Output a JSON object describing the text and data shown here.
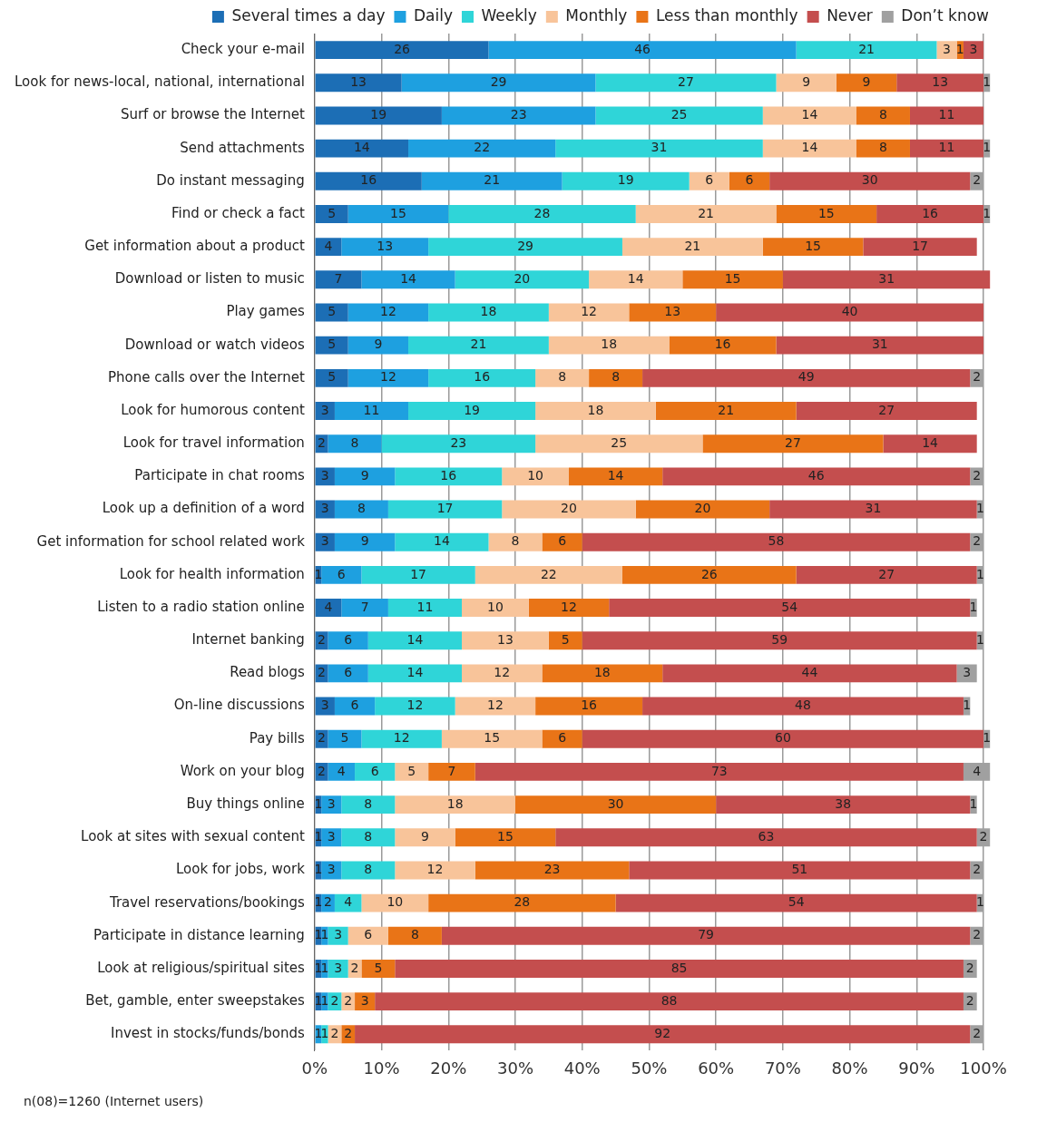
{
  "chart_data": {
    "type": "bar",
    "orientation": "horizontal",
    "stacked": true,
    "data_labels": true,
    "grid": "x",
    "legend": "top",
    "categories": [
      "Check your e-mail",
      "Look for news-local, national, international",
      "Surf or browse the Internet",
      "Send attachments",
      "Do instant messaging",
      "Find or check a fact",
      "Get information about a product",
      "Download or listen to music",
      "Play games",
      "Download or watch videos",
      "Phone calls over the Internet",
      "Look for humorous content",
      "Look for travel information",
      "Participate in chat rooms",
      "Look up a definition of a word",
      "Get information for school related work",
      "Look for health information",
      "Listen to a radio station online",
      "Internet banking",
      "Read blogs",
      "On-line discussions",
      "Pay bills",
      "Work on your blog",
      "Buy things online",
      "Look at sites with sexual content",
      "Look for jobs, work",
      "Travel reservations/bookings",
      "Participate in distance learning",
      "Look at religious/spiritual sites",
      "Bet, gamble, enter sweepstakes",
      "Invest in stocks/funds/bonds"
    ],
    "series": [
      {
        "name": "Several times a day",
        "color": "#1c6eb5",
        "values": [
          26,
          13,
          19,
          14,
          16,
          5,
          4,
          7,
          5,
          5,
          5,
          3,
          2,
          3,
          3,
          3,
          1,
          4,
          2,
          2,
          3,
          2,
          2,
          1,
          1,
          1,
          1,
          1,
          1,
          1,
          null
        ]
      },
      {
        "name": "Daily",
        "color": "#1ea0e0",
        "values": [
          46,
          29,
          23,
          22,
          21,
          15,
          13,
          14,
          12,
          9,
          12,
          11,
          8,
          9,
          8,
          9,
          6,
          7,
          6,
          6,
          6,
          5,
          4,
          3,
          3,
          3,
          2,
          1,
          1,
          1,
          1
        ]
      },
      {
        "name": "Weekly",
        "color": "#2fd5d8",
        "values": [
          21,
          27,
          25,
          31,
          19,
          28,
          29,
          20,
          18,
          21,
          16,
          19,
          23,
          16,
          17,
          14,
          17,
          11,
          14,
          14,
          12,
          12,
          6,
          8,
          8,
          8,
          4,
          3,
          3,
          2,
          1
        ]
      },
      {
        "name": "Monthly",
        "color": "#f8c49a",
        "values": [
          3,
          9,
          14,
          14,
          6,
          21,
          21,
          14,
          12,
          18,
          8,
          18,
          25,
          10,
          20,
          8,
          22,
          10,
          13,
          12,
          12,
          15,
          5,
          18,
          9,
          12,
          10,
          6,
          2,
          2,
          2
        ]
      },
      {
        "name": "Less than monthly",
        "color": "#e97417",
        "values": [
          1,
          9,
          8,
          8,
          6,
          15,
          15,
          15,
          13,
          16,
          8,
          21,
          27,
          14,
          20,
          6,
          26,
          12,
          5,
          18,
          16,
          6,
          7,
          30,
          15,
          23,
          28,
          8,
          5,
          3,
          2
        ]
      },
      {
        "name": "Never",
        "color": "#c44e4e",
        "values": [
          3,
          13,
          11,
          11,
          30,
          16,
          17,
          31,
          40,
          31,
          49,
          27,
          14,
          46,
          31,
          58,
          27,
          54,
          59,
          44,
          48,
          60,
          73,
          38,
          63,
          51,
          54,
          79,
          85,
          88,
          92
        ]
      },
      {
        "name": "Don’t know",
        "color": "#a0a0a0",
        "values": [
          null,
          1,
          null,
          1,
          2,
          1,
          null,
          null,
          null,
          null,
          2,
          null,
          null,
          2,
          1,
          2,
          1,
          1,
          1,
          3,
          1,
          1,
          4,
          1,
          2,
          2,
          1,
          2,
          2,
          2,
          2
        ]
      }
    ],
    "xlim": [
      0,
      101
    ],
    "xticks": [
      {
        "value": 0,
        "label": "0%"
      },
      {
        "value": 10,
        "label": "10%"
      },
      {
        "value": 20,
        "label": "20%"
      },
      {
        "value": 30,
        "label": "30%"
      },
      {
        "value": 40,
        "label": "40%"
      },
      {
        "value": 50,
        "label": "50%"
      },
      {
        "value": 60,
        "label": "60%"
      },
      {
        "value": 70,
        "label": "70%"
      },
      {
        "value": 80,
        "label": "80%"
      },
      {
        "value": 90,
        "label": "90%"
      },
      {
        "value": 100,
        "label": "100%"
      }
    ],
    "annotations": [
      "n(08)=1260 (Internet users)"
    ]
  }
}
